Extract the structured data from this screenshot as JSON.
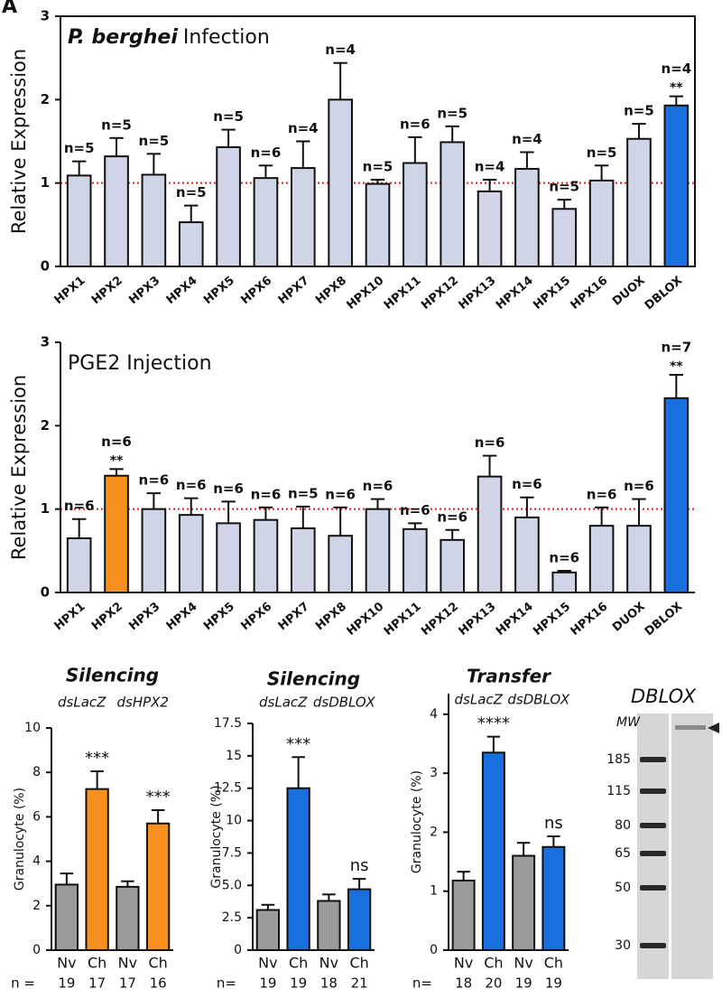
{
  "panel_label": "A",
  "chart_data": [
    {
      "type": "bar",
      "title_italic": "P. berghei",
      "title": "Infection",
      "y_label": "Relative Expression",
      "categories": [
        "HPX1",
        "HPX2",
        "HPX3",
        "HPX4",
        "HPX5",
        "HPX6",
        "HPX7",
        "HPX8",
        "HPX10",
        "HPX11",
        "HPX12",
        "HPX13",
        "HPX14",
        "HPX15",
        "HPX16",
        "DUOX",
        "DBLOX"
      ],
      "values": [
        1.09,
        1.32,
        1.1,
        0.53,
        1.43,
        1.06,
        1.18,
        2.0,
        0.99,
        1.24,
        1.49,
        0.9,
        1.17,
        0.69,
        1.03,
        1.53,
        1.93
      ],
      "errors": [
        0.17,
        0.22,
        0.25,
        0.2,
        0.21,
        0.15,
        0.32,
        0.44,
        0.05,
        0.31,
        0.19,
        0.14,
        0.2,
        0.11,
        0.18,
        0.18,
        0.11
      ],
      "n_labels": [
        "n=5",
        "n=5",
        "n=5",
        "n=5",
        "n=5",
        "n=6",
        "n=4",
        "n=4",
        "n=5",
        "n=6",
        "n=5",
        "n=4",
        "n=4",
        "n=5",
        "n=5",
        "n=5",
        "n=4"
      ],
      "significance": [
        null,
        null,
        null,
        null,
        null,
        null,
        null,
        null,
        null,
        null,
        null,
        null,
        null,
        null,
        null,
        null,
        "**"
      ],
      "colors": [
        "#cfd5e6",
        "#cfd5e6",
        "#cfd5e6",
        "#cfd5e6",
        "#cfd5e6",
        "#cfd5e6",
        "#cfd5e6",
        "#cfd5e6",
        "#cfd5e6",
        "#cfd5e6",
        "#cfd5e6",
        "#cfd5e6",
        "#cfd5e6",
        "#cfd5e6",
        "#cfd5e6",
        "#cfd5e6",
        "#1a6fdf"
      ],
      "reference_line": 1,
      "reference_color": "#e02020",
      "ylim": [
        0,
        3
      ],
      "yticks": [
        0,
        1,
        2,
        3
      ],
      "frame": true
    },
    {
      "type": "bar",
      "title": "PGE2 Injection",
      "y_label": "Relative Expression",
      "categories": [
        "HPX1",
        "HPX2",
        "HPX3",
        "HPX4",
        "HPX5",
        "HPX6",
        "HPX7",
        "HPX8",
        "HPX10",
        "HPX11",
        "HPX12",
        "HPX13",
        "HPX14",
        "HPX15",
        "HPX16",
        "DUOX",
        "DBLOX"
      ],
      "values": [
        0.65,
        1.4,
        1.0,
        0.93,
        0.83,
        0.87,
        0.77,
        0.68,
        1.0,
        0.76,
        0.63,
        1.39,
        0.9,
        0.24,
        0.8,
        0.8,
        2.33
      ],
      "errors": [
        0.23,
        0.08,
        0.19,
        0.2,
        0.26,
        0.15,
        0.26,
        0.34,
        0.12,
        0.07,
        0.12,
        0.25,
        0.24,
        0.02,
        0.22,
        0.32,
        0.28
      ],
      "n_labels": [
        "n=6",
        "n=6",
        "n=6",
        "n=6",
        "n=6",
        "n=6",
        "n=5",
        "n=6",
        "n=6",
        "n=6",
        "n=6",
        "n=6",
        "n=6",
        "n=6",
        "n=6",
        "n=6",
        "n=7"
      ],
      "significance": [
        null,
        "**",
        null,
        null,
        null,
        null,
        null,
        null,
        null,
        null,
        null,
        null,
        null,
        null,
        null,
        null,
        "**"
      ],
      "colors": [
        "#cfd5e6",
        "#f7901e",
        "#cfd5e6",
        "#cfd5e6",
        "#cfd5e6",
        "#cfd5e6",
        "#cfd5e6",
        "#cfd5e6",
        "#cfd5e6",
        "#cfd5e6",
        "#cfd5e6",
        "#cfd5e6",
        "#cfd5e6",
        "#cfd5e6",
        "#cfd5e6",
        "#cfd5e6",
        "#1a6fdf"
      ],
      "reference_line": 1,
      "reference_color": "#e02020",
      "ylim": [
        0,
        3
      ],
      "yticks": [
        0,
        1,
        2,
        3
      ],
      "frame": false
    },
    {
      "type": "bar",
      "title": "Silencing",
      "groups": [
        "dsLacZ",
        "dsHPX2"
      ],
      "y_label": "Granulocyte (%)",
      "categories": [
        "Nv",
        "Ch",
        "Nv",
        "Ch"
      ],
      "values": [
        2.95,
        7.25,
        2.85,
        5.7
      ],
      "errors": [
        0.5,
        0.8,
        0.25,
        0.6
      ],
      "significance": [
        null,
        "***",
        null,
        "***"
      ],
      "colors": [
        "#9b9b9b",
        "#f7901e",
        "#9b9b9b",
        "#f7901e"
      ],
      "n_label": "n =",
      "n": [
        19,
        17,
        17,
        16
      ],
      "ylim": [
        0,
        10
      ],
      "yticks": [
        0,
        2,
        4,
        6,
        8,
        10
      ]
    },
    {
      "type": "bar",
      "title": "Silencing",
      "groups": [
        "dsLacZ",
        "dsDBLOX"
      ],
      "y_label": "Granulocyte (%)",
      "categories": [
        "Nv",
        "Ch",
        "Nv",
        "Ch"
      ],
      "values": [
        3.1,
        12.5,
        3.8,
        4.7
      ],
      "errors": [
        0.4,
        2.4,
        0.5,
        0.8
      ],
      "significance": [
        null,
        "***",
        null,
        "ns"
      ],
      "colors": [
        "#9b9b9b",
        "#1a6fdf",
        "#9b9b9b",
        "#1a6fdf"
      ],
      "n_label": "n=",
      "n": [
        19,
        19,
        18,
        21
      ],
      "ylim": [
        0,
        17.5
      ],
      "yticks": [
        0,
        2.5,
        {
          "value": 5,
          "label": "5.0"
        },
        7.5,
        10,
        12.5,
        15,
        17.5
      ]
    },
    {
      "type": "bar",
      "title": "Transfer",
      "groups": [
        "dsLacZ",
        "dsDBLOX"
      ],
      "y_label": "Granulocyte (%)",
      "categories": [
        "Nv",
        "Ch",
        "Nv",
        "Ch"
      ],
      "values": [
        1.18,
        3.35,
        1.6,
        1.75
      ],
      "errors": [
        0.15,
        0.27,
        0.22,
        0.18
      ],
      "significance": [
        null,
        "****",
        null,
        "ns"
      ],
      "colors": [
        "#9b9b9b",
        "#1a6fdf",
        "#9b9b9b",
        "#1a6fdf"
      ],
      "n_label": "n=",
      "n": [
        18,
        20,
        19,
        19
      ],
      "ylim": [
        0,
        4.35
      ],
      "yticks": [
        0,
        1,
        2,
        3,
        4
      ]
    }
  ],
  "blot": {
    "title": "DBLOX",
    "mw_label": "MW",
    "markers": [
      185,
      115,
      80,
      65,
      50,
      30
    ]
  }
}
